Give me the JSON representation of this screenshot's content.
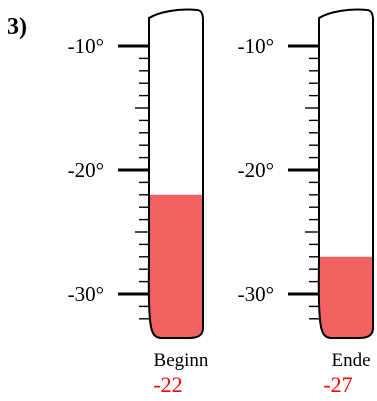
{
  "problem_number": "3)",
  "scale": {
    "min": -33,
    "max": -7,
    "major_ticks": [
      -10,
      -20,
      -30
    ],
    "minor_step": 1,
    "tick_labels": [
      "-10°",
      "-20°",
      "-30°"
    ]
  },
  "thermometers": [
    {
      "id": "beginn",
      "caption": "Beginn",
      "value": -22,
      "value_text": "-22"
    },
    {
      "id": "ende",
      "caption": "Ende",
      "value": -27,
      "value_text": "-27"
    }
  ],
  "colors": {
    "fill": "#f06262",
    "value_text": "#ff0000",
    "outline": "#000000"
  }
}
